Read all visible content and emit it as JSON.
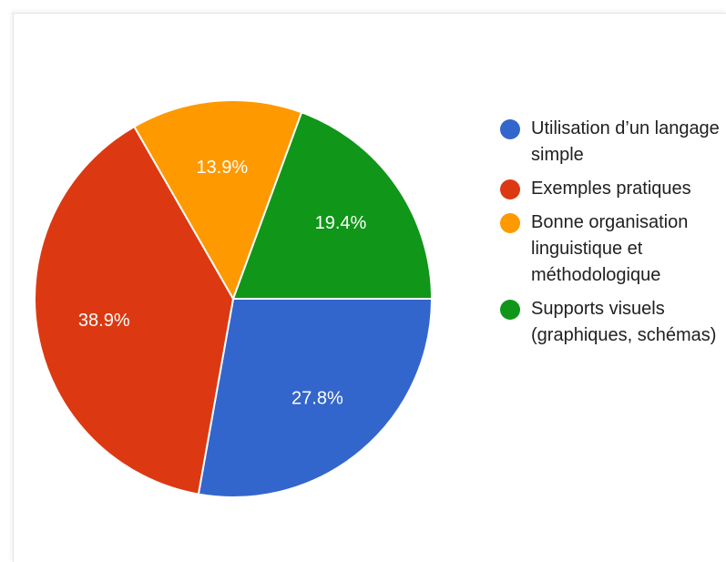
{
  "chart_data": {
    "type": "pie",
    "categories": [
      "Utilisation d’un langage simple",
      "Exemples pratiques",
      "Bonne organisation linguistique et méthodologique",
      "Supports visuels (graphiques, schémas)"
    ],
    "values": [
      27.8,
      38.9,
      13.9,
      19.4
    ],
    "labels": [
      "27.8%",
      "38.9%",
      "13.9%",
      "19.4%"
    ],
    "colors": [
      "#3366cc",
      "#dc3912",
      "#ff9900",
      "#109618"
    ],
    "legend_position": "right"
  },
  "legend": {
    "items": [
      {
        "label": "Utilisation d’un langage simple",
        "color": "#3366cc"
      },
      {
        "label": "Exemples pratiques",
        "color": "#dc3912"
      },
      {
        "label": "Bonne organisation linguistique et méthodologique",
        "color": "#ff9900"
      },
      {
        "label": "Supports visuels (graphiques, schémas)",
        "color": "#109618"
      }
    ]
  }
}
